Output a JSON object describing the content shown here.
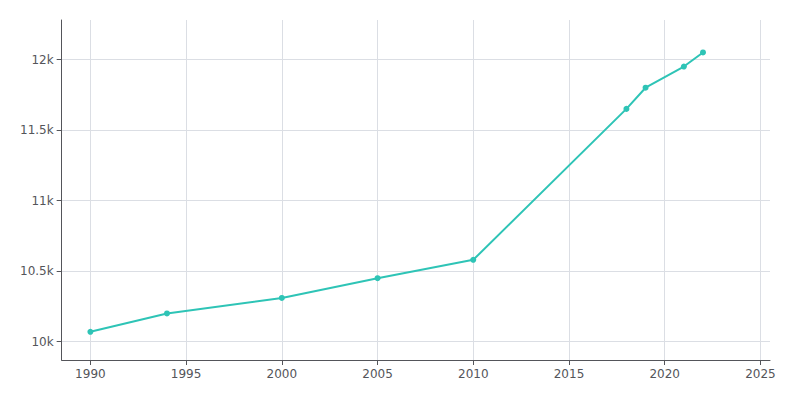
{
  "chart_data": {
    "type": "line",
    "x": [
      1990,
      1994,
      2000,
      2005,
      2010,
      2018,
      2019,
      2021,
      2022
    ],
    "values": [
      10070,
      10200,
      10310,
      10450,
      10580,
      11650,
      11800,
      11950,
      12050
    ],
    "color": "#2ec4b6",
    "marker": "circle",
    "xlim": [
      1988.5,
      2025.5
    ],
    "xticks": [
      1990,
      1995,
      2000,
      2005,
      2010,
      2015,
      2020,
      2025
    ],
    "ylim": [
      9870,
      12280
    ],
    "yticks": [
      {
        "value": 10000,
        "label": "10k"
      },
      {
        "value": 10500,
        "label": "10.5k"
      },
      {
        "value": 11000,
        "label": "11k"
      },
      {
        "value": 11500,
        "label": "11.5k"
      },
      {
        "value": 12000,
        "label": "12k"
      }
    ],
    "grid": true
  }
}
